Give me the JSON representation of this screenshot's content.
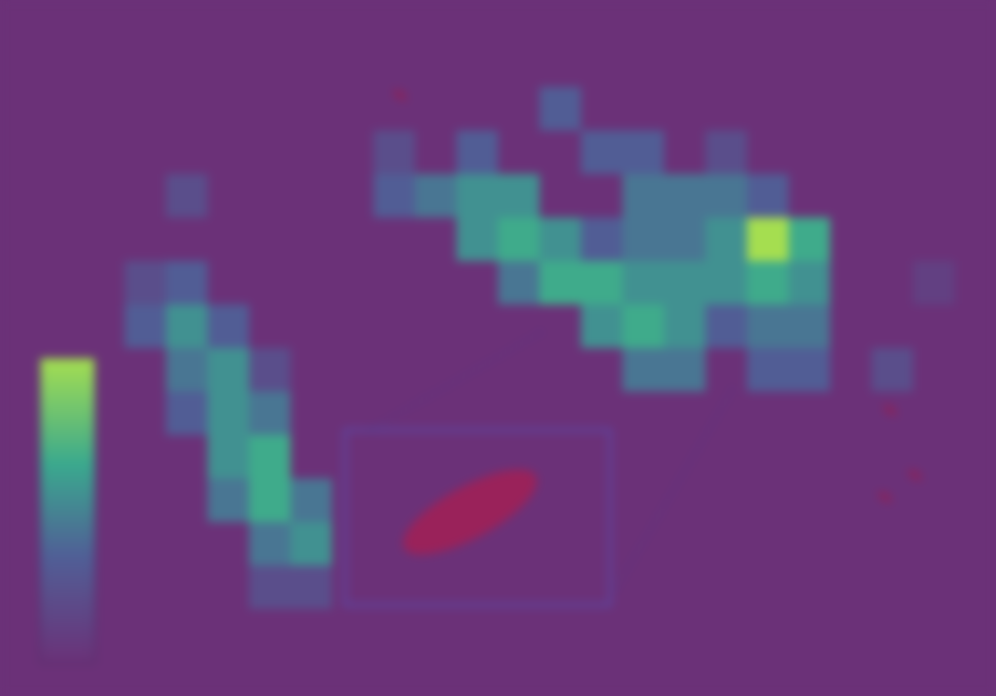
{
  "chart_data": {
    "type": "heatmap",
    "xlim": [
      0,
      24
    ],
    "ylim": [
      0,
      16
    ],
    "grid": false,
    "tick_labels": false,
    "cells": [
      [
        0,
        0,
        0,
        0,
        0,
        0,
        0,
        0,
        0,
        0,
        0,
        0,
        0,
        0,
        0,
        0,
        0,
        0,
        0,
        0,
        0,
        0,
        0,
        0
      ],
      [
        0,
        0,
        0,
        0,
        0,
        0,
        0,
        0,
        0,
        0,
        0,
        0,
        0,
        0,
        0,
        0,
        0,
        0,
        0,
        0,
        0,
        0,
        0,
        0
      ],
      [
        0,
        0,
        0,
        0,
        0,
        0,
        0,
        0,
        0,
        0,
        0,
        0,
        0,
        3,
        0,
        0,
        0,
        0,
        0,
        0,
        0,
        0,
        0,
        0
      ],
      [
        0,
        0,
        0,
        0,
        0,
        0,
        0,
        0,
        0,
        2,
        0,
        3,
        0,
        0,
        3,
        3,
        0,
        2,
        0,
        0,
        0,
        0,
        0,
        0
      ],
      [
        0,
        0,
        0,
        0,
        2,
        0,
        0,
        0,
        0,
        3,
        4,
        5,
        5,
        0,
        0,
        4,
        4,
        4,
        3,
        0,
        0,
        0,
        0,
        0
      ],
      [
        0,
        0,
        0,
        0,
        0,
        0,
        0,
        0,
        0,
        0,
        0,
        5,
        6,
        5,
        3,
        4,
        4,
        5,
        9,
        6,
        0,
        0,
        0,
        0
      ],
      [
        0,
        0,
        0,
        2,
        3,
        0,
        0,
        0,
        0,
        0,
        0,
        0,
        4,
        6,
        6,
        5,
        5,
        5,
        6,
        5,
        0,
        0,
        1,
        0
      ],
      [
        0,
        0,
        0,
        3,
        5,
        3,
        0,
        0,
        0,
        0,
        0,
        0,
        0,
        0,
        5,
        6,
        5,
        3,
        4,
        4,
        0,
        0,
        0,
        0
      ],
      [
        0,
        0,
        0,
        0,
        4,
        5,
        2,
        0,
        0,
        0,
        0,
        0,
        0,
        0,
        0,
        4,
        4,
        0,
        3,
        3,
        0,
        2,
        0,
        0
      ],
      [
        0,
        0,
        0,
        0,
        3,
        5,
        4,
        0,
        0,
        0,
        0,
        0,
        0,
        0,
        0,
        0,
        0,
        0,
        0,
        0,
        0,
        0,
        0,
        0
      ],
      [
        0,
        0,
        0,
        0,
        0,
        5,
        6,
        0,
        0,
        0,
        0,
        0,
        0,
        0,
        0,
        0,
        0,
        0,
        0,
        0,
        0,
        0,
        0,
        0
      ],
      [
        0,
        0,
        0,
        0,
        0,
        4,
        6,
        4,
        0,
        0,
        0,
        0,
        0,
        0,
        0,
        0,
        0,
        0,
        0,
        0,
        0,
        0,
        0,
        0
      ],
      [
        0,
        0,
        0,
        0,
        0,
        0,
        4,
        5,
        0,
        0,
        0,
        0,
        0,
        0,
        0,
        0,
        0,
        0,
        0,
        0,
        0,
        0,
        0,
        0
      ],
      [
        0,
        0,
        0,
        0,
        0,
        0,
        2,
        2,
        0,
        0,
        0,
        0,
        0,
        0,
        0,
        0,
        0,
        0,
        0,
        0,
        0,
        0,
        0,
        0
      ],
      [
        0,
        0,
        0,
        0,
        0,
        0,
        0,
        0,
        0,
        0,
        0,
        0,
        0,
        0,
        0,
        0,
        0,
        0,
        0,
        0,
        0,
        0,
        0,
        0
      ],
      [
        0,
        0,
        0,
        0,
        0,
        0,
        0,
        0,
        0,
        0,
        0,
        0,
        0,
        0,
        0,
        0,
        0,
        0,
        0,
        0,
        0,
        0,
        0,
        0
      ]
    ],
    "colorbar": {
      "range": [
        0,
        9
      ]
    }
  }
}
